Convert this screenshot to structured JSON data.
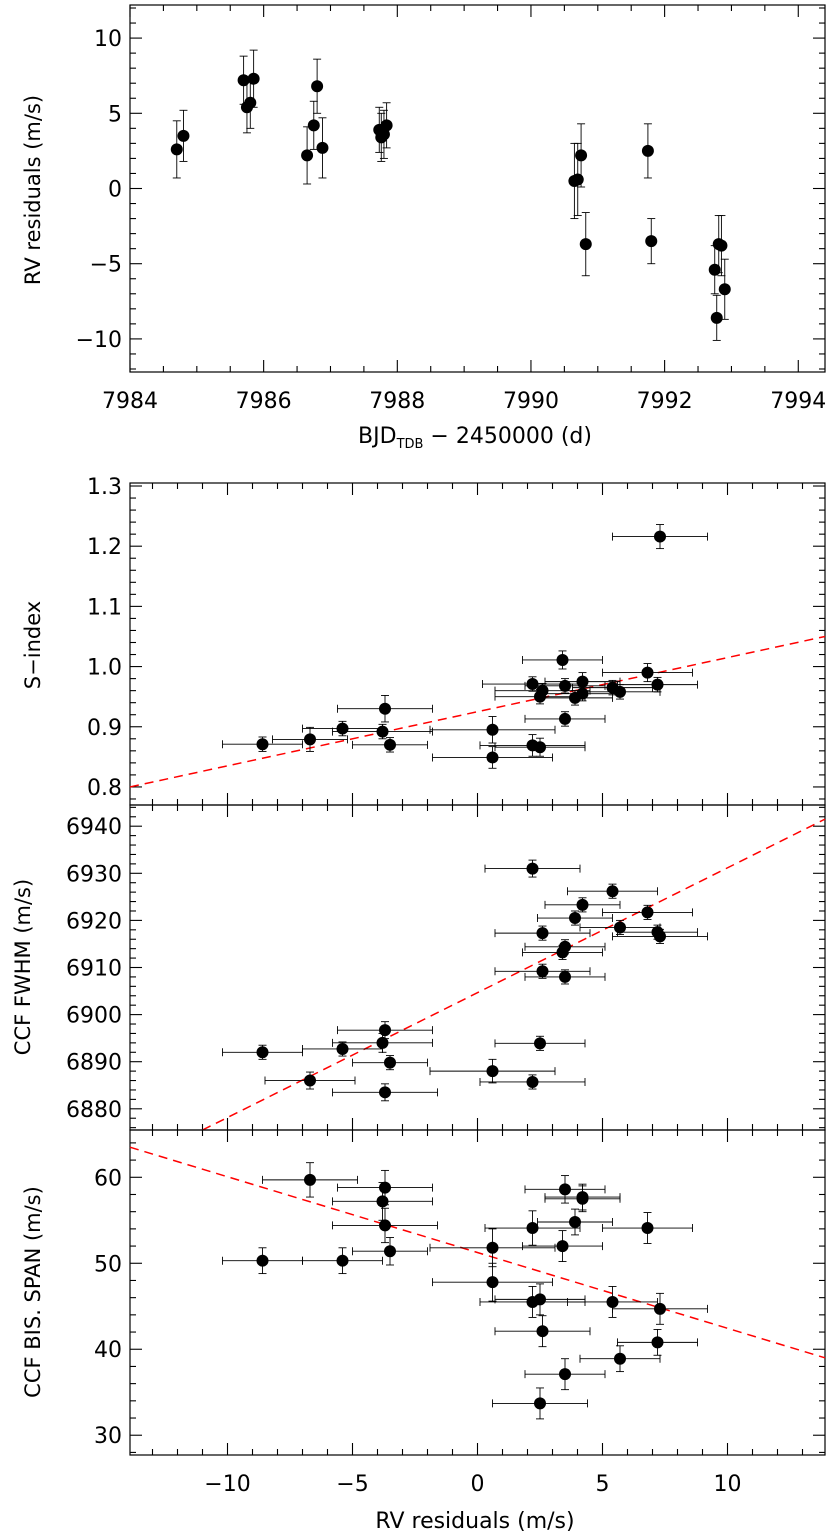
{
  "chart_data": [
    {
      "type": "scatter",
      "xlabel": "BJD",
      "xlabel_sub": "TDB",
      "xlabel_rest": " − 2450000 (d)",
      "ylabel": "RV residuals (m/s)",
      "xlim": [
        7984,
        7994.4
      ],
      "ylim": [
        -12.2,
        12.2
      ],
      "xticks": [
        7984,
        7986,
        7988,
        7990,
        7992,
        7994
      ],
      "yticks": [
        -10,
        -5,
        0,
        5,
        10
      ],
      "points": [
        {
          "x": 7984.7,
          "y": 2.6,
          "yerr": 1.9
        },
        {
          "x": 7984.8,
          "y": 3.5,
          "yerr": 1.7
        },
        {
          "x": 7985.7,
          "y": 7.2,
          "yerr": 1.6
        },
        {
          "x": 7985.75,
          "y": 5.4,
          "yerr": 1.7
        },
        {
          "x": 7985.8,
          "y": 5.7,
          "yerr": 1.7
        },
        {
          "x": 7985.85,
          "y": 7.3,
          "yerr": 1.9
        },
        {
          "x": 7986.65,
          "y": 2.2,
          "yerr": 1.9
        },
        {
          "x": 7986.75,
          "y": 4.2,
          "yerr": 1.6
        },
        {
          "x": 7986.8,
          "y": 6.8,
          "yerr": 1.8
        },
        {
          "x": 7986.88,
          "y": 2.7,
          "yerr": 2.0
        },
        {
          "x": 7987.73,
          "y": 3.9,
          "yerr": 1.5
        },
        {
          "x": 7987.76,
          "y": 3.4,
          "yerr": 1.6
        },
        {
          "x": 7987.8,
          "y": 3.6,
          "yerr": 1.6
        },
        {
          "x": 7987.84,
          "y": 4.2,
          "yerr": 1.5
        },
        {
          "x": 7990.65,
          "y": 0.5,
          "yerr": 2.5
        },
        {
          "x": 7990.7,
          "y": 0.6,
          "yerr": 2.4
        },
        {
          "x": 7990.75,
          "y": 2.2,
          "yerr": 2.1
        },
        {
          "x": 7990.82,
          "y": -3.7,
          "yerr": 2.1
        },
        {
          "x": 7991.75,
          "y": 2.5,
          "yerr": 1.8
        },
        {
          "x": 7991.8,
          "y": -3.5,
          "yerr": 1.5
        },
        {
          "x": 7992.75,
          "y": -5.4,
          "yerr": 1.6
        },
        {
          "x": 7992.78,
          "y": -8.6,
          "yerr": 1.5
        },
        {
          "x": 7992.81,
          "y": -3.7,
          "yerr": 1.9
        },
        {
          "x": 7992.85,
          "y": -3.8,
          "yerr": 2.0
        },
        {
          "x": 7992.9,
          "y": -6.7,
          "yerr": 2.0
        }
      ]
    },
    {
      "type": "scatter",
      "ylabel": "S−index",
      "xlim": [
        -13.9,
        13.9
      ],
      "ylim": [
        0.77,
        1.305
      ],
      "yticks": [
        "0.8",
        "0.9",
        "1.0",
        "1.1",
        "1.2",
        "1.3"
      ],
      "fit": {
        "x": [
          -13.9,
          13.9
        ],
        "y": [
          0.8,
          1.05
        ]
      },
      "points": [
        {
          "x": -8.6,
          "y": 0.871,
          "xerr": 1.6,
          "yerr": 0.012
        },
        {
          "x": -6.7,
          "y": 0.879,
          "xerr": 1.5,
          "yerr": 0.02
        },
        {
          "x": -5.4,
          "y": 0.897,
          "xerr": 1.6,
          "yerr": 0.012
        },
        {
          "x": -3.8,
          "y": 0.892,
          "xerr": 2.0,
          "yerr": 0.012
        },
        {
          "x": -3.7,
          "y": 0.93,
          "xerr": 1.9,
          "yerr": 0.022
        },
        {
          "x": -3.5,
          "y": 0.87,
          "xerr": 1.5,
          "yerr": 0.012
        },
        {
          "x": 0.6,
          "y": 0.895,
          "xerr": 2.5,
          "yerr": 0.022
        },
        {
          "x": 0.6,
          "y": 0.849,
          "xerr": 2.4,
          "yerr": 0.018
        },
        {
          "x": 2.2,
          "y": 0.971,
          "xerr": 2.0,
          "yerr": 0.012
        },
        {
          "x": 2.2,
          "y": 0.869,
          "xerr": 2.1,
          "yerr": 0.018
        },
        {
          "x": 2.5,
          "y": 0.866,
          "xerr": 1.8,
          "yerr": 0.015
        },
        {
          "x": 2.5,
          "y": 0.95,
          "xerr": 1.8,
          "yerr": 0.012
        },
        {
          "x": 2.6,
          "y": 0.96,
          "xerr": 1.9,
          "yerr": 0.012
        },
        {
          "x": 3.4,
          "y": 1.011,
          "xerr": 1.6,
          "yerr": 0.015
        },
        {
          "x": 3.5,
          "y": 0.913,
          "xerr": 1.6,
          "yerr": 0.012
        },
        {
          "x": 3.5,
          "y": 0.968,
          "xerr": 1.6,
          "yerr": 0.012
        },
        {
          "x": 3.9,
          "y": 0.948,
          "xerr": 1.5,
          "yerr": 0.012
        },
        {
          "x": 4.2,
          "y": 0.955,
          "xerr": 1.5,
          "yerr": 0.012
        },
        {
          "x": 4.2,
          "y": 0.975,
          "xerr": 1.5,
          "yerr": 0.015
        },
        {
          "x": 5.4,
          "y": 0.965,
          "xerr": 1.6,
          "yerr": 0.012
        },
        {
          "x": 5.7,
          "y": 0.958,
          "xerr": 1.6,
          "yerr": 0.012
        },
        {
          "x": 6.8,
          "y": 0.99,
          "xerr": 1.8,
          "yerr": 0.015
        },
        {
          "x": 7.2,
          "y": 0.97,
          "xerr": 1.6,
          "yerr": 0.012
        },
        {
          "x": 7.3,
          "y": 1.216,
          "xerr": 1.9,
          "yerr": 0.02
        }
      ]
    },
    {
      "type": "scatter",
      "ylabel": "CCF FWHM (m/s)",
      "xlim": [
        -13.9,
        13.9
      ],
      "ylim": [
        6875.5,
        6944.5
      ],
      "yticks": [
        6880,
        6890,
        6900,
        6910,
        6920,
        6930,
        6940
      ],
      "fit": {
        "x": [
          -11.0,
          13.9
        ],
        "y": [
          6875.5,
          6941.5
        ]
      },
      "points": [
        {
          "x": -8.6,
          "y": 6892.0,
          "xerr": 1.6,
          "yerr": 1.5
        },
        {
          "x": -6.7,
          "y": 6886.0,
          "xerr": 1.8,
          "yerr": 1.8
        },
        {
          "x": -5.4,
          "y": 6892.7,
          "xerr": 1.6,
          "yerr": 1.5
        },
        {
          "x": -3.8,
          "y": 6894.0,
          "xerr": 2.0,
          "yerr": 2.0
        },
        {
          "x": -3.7,
          "y": 6896.7,
          "xerr": 1.9,
          "yerr": 1.8
        },
        {
          "x": -3.7,
          "y": 6883.5,
          "xerr": 2.1,
          "yerr": 1.8
        },
        {
          "x": -3.5,
          "y": 6889.8,
          "xerr": 1.5,
          "yerr": 1.5
        },
        {
          "x": 0.6,
          "y": 6888.0,
          "xerr": 2.5,
          "yerr": 2.5
        },
        {
          "x": 2.2,
          "y": 6931.0,
          "xerr": 1.9,
          "yerr": 1.8
        },
        {
          "x": 2.2,
          "y": 6885.7,
          "xerr": 2.1,
          "yerr": 1.5
        },
        {
          "x": 2.5,
          "y": 6893.9,
          "xerr": 1.8,
          "yerr": 1.5
        },
        {
          "x": 2.6,
          "y": 6917.3,
          "xerr": 1.9,
          "yerr": 1.5
        },
        {
          "x": 2.6,
          "y": 6909.2,
          "xerr": 1.9,
          "yerr": 1.5
        },
        {
          "x": 3.4,
          "y": 6913.2,
          "xerr": 1.6,
          "yerr": 1.5
        },
        {
          "x": 3.5,
          "y": 6914.4,
          "xerr": 1.6,
          "yerr": 1.5
        },
        {
          "x": 3.5,
          "y": 6908.0,
          "xerr": 1.6,
          "yerr": 1.5
        },
        {
          "x": 3.9,
          "y": 6920.5,
          "xerr": 1.5,
          "yerr": 1.5
        },
        {
          "x": 4.2,
          "y": 6923.3,
          "xerr": 1.5,
          "yerr": 1.5
        },
        {
          "x": 5.4,
          "y": 6926.2,
          "xerr": 1.8,
          "yerr": 1.5
        },
        {
          "x": 5.7,
          "y": 6918.5,
          "xerr": 1.6,
          "yerr": 1.5
        },
        {
          "x": 6.8,
          "y": 6921.7,
          "xerr": 1.8,
          "yerr": 1.5
        },
        {
          "x": 7.2,
          "y": 6917.5,
          "xerr": 1.6,
          "yerr": 1.5
        },
        {
          "x": 7.3,
          "y": 6916.6,
          "xerr": 1.9,
          "yerr": 1.5
        }
      ]
    },
    {
      "type": "scatter",
      "xlabel": "RV residuals (m/s)",
      "ylabel": "CCF BIS. SPAN (m/s)",
      "xlim": [
        -13.9,
        13.9
      ],
      "ylim": [
        27.7,
        65.5
      ],
      "xticks": [
        -10,
        -5,
        0,
        5,
        10
      ],
      "yticks": [
        30,
        40,
        50,
        60
      ],
      "fit": {
        "x": [
          -13.9,
          13.9
        ],
        "y": [
          63.5,
          39.0
        ]
      },
      "points": [
        {
          "x": -8.6,
          "y": 50.3,
          "xerr": 1.6,
          "yerr": 1.5
        },
        {
          "x": -6.7,
          "y": 59.7,
          "xerr": 1.9,
          "yerr": 2.0
        },
        {
          "x": -5.4,
          "y": 50.3,
          "xerr": 1.6,
          "yerr": 1.5
        },
        {
          "x": -3.8,
          "y": 57.2,
          "xerr": 2.0,
          "yerr": 2.2
        },
        {
          "x": -3.7,
          "y": 58.8,
          "xerr": 1.9,
          "yerr": 2.0
        },
        {
          "x": -3.7,
          "y": 54.4,
          "xerr": 2.1,
          "yerr": 2.0
        },
        {
          "x": -3.5,
          "y": 51.4,
          "xerr": 1.5,
          "yerr": 1.6
        },
        {
          "x": 0.6,
          "y": 51.8,
          "xerr": 2.5,
          "yerr": 2.2
        },
        {
          "x": 0.6,
          "y": 47.8,
          "xerr": 2.4,
          "yerr": 2.2
        },
        {
          "x": 2.2,
          "y": 54.1,
          "xerr": 1.9,
          "yerr": 2.0
        },
        {
          "x": 2.2,
          "y": 45.5,
          "xerr": 2.1,
          "yerr": 1.8
        },
        {
          "x": 2.5,
          "y": 45.8,
          "xerr": 1.8,
          "yerr": 1.8
        },
        {
          "x": 2.5,
          "y": 33.7,
          "xerr": 1.9,
          "yerr": 1.8
        },
        {
          "x": 2.6,
          "y": 42.1,
          "xerr": 1.9,
          "yerr": 1.8
        },
        {
          "x": 3.4,
          "y": 52.0,
          "xerr": 1.6,
          "yerr": 1.8
        },
        {
          "x": 3.5,
          "y": 58.6,
          "xerr": 1.6,
          "yerr": 1.6
        },
        {
          "x": 3.5,
          "y": 37.1,
          "xerr": 1.6,
          "yerr": 1.8
        },
        {
          "x": 3.9,
          "y": 54.8,
          "xerr": 1.5,
          "yerr": 1.5
        },
        {
          "x": 4.2,
          "y": 57.7,
          "xerr": 1.5,
          "yerr": 1.5
        },
        {
          "x": 4.2,
          "y": 57.5,
          "xerr": 1.5,
          "yerr": 1.5
        },
        {
          "x": 5.4,
          "y": 45.5,
          "xerr": 1.8,
          "yerr": 1.8
        },
        {
          "x": 5.7,
          "y": 38.9,
          "xerr": 1.6,
          "yerr": 1.5
        },
        {
          "x": 6.8,
          "y": 54.1,
          "xerr": 1.8,
          "yerr": 1.8
        },
        {
          "x": 7.2,
          "y": 40.8,
          "xerr": 1.6,
          "yerr": 1.5
        },
        {
          "x": 7.3,
          "y": 44.7,
          "xerr": 1.9,
          "yerr": 1.8
        }
      ]
    }
  ],
  "colors": {
    "points": "#000000",
    "fit_line": "#ff0000"
  }
}
